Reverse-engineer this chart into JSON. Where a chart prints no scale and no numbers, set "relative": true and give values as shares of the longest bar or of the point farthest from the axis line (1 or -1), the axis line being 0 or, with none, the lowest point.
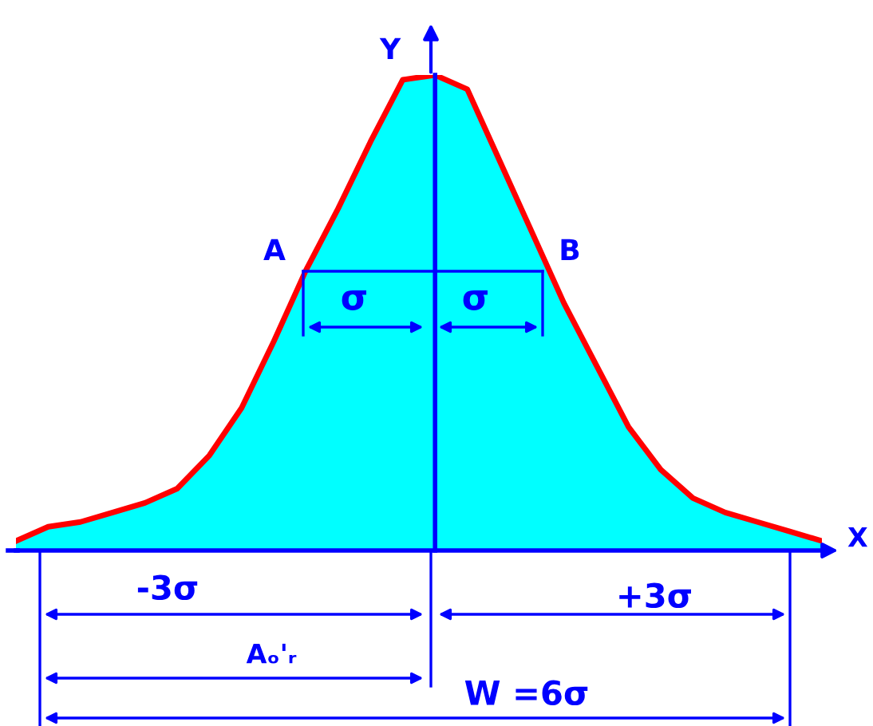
{
  "chart_data": {
    "type": "area",
    "relative": true,
    "xlabel": "X",
    "ylabel": "Y",
    "categories": [
      null,
      null,
      null,
      null,
      null,
      null,
      null,
      null,
      null,
      null,
      null,
      null,
      null,
      null,
      null,
      null,
      null,
      null,
      null,
      null,
      null,
      null,
      null,
      null,
      null,
      null
    ],
    "series": [
      {
        "color": "#00ffff",
        "values": [
          0.02,
          0.05,
          0.06,
          0.08,
          0.1,
          0.13,
          0.2,
          0.3,
          0.44,
          0.59,
          0.72,
          0.86,
          0.99,
          1.0,
          0.97,
          0.82,
          0.67,
          0.52,
          0.39,
          0.26,
          0.17,
          0.11,
          0.08,
          0.06,
          0.04,
          0.02
        ]
      },
      {
        "type": "line",
        "color": "#ff0000",
        "values": [
          0.02,
          0.05,
          0.06,
          0.08,
          0.1,
          0.13,
          0.2,
          0.3,
          0.44,
          0.59,
          0.72,
          0.86,
          0.99,
          1.0,
          0.97,
          0.82,
          0.67,
          0.52,
          0.39,
          0.26,
          0.17,
          0.11,
          0.08,
          0.06,
          0.04,
          0.02
        ]
      }
    ],
    "annotations": [
      "A",
      "B",
      "σ",
      "σ",
      "-3σ",
      "+3σ",
      "Aₒ'ᵣ",
      "W =6σ"
    ]
  }
}
